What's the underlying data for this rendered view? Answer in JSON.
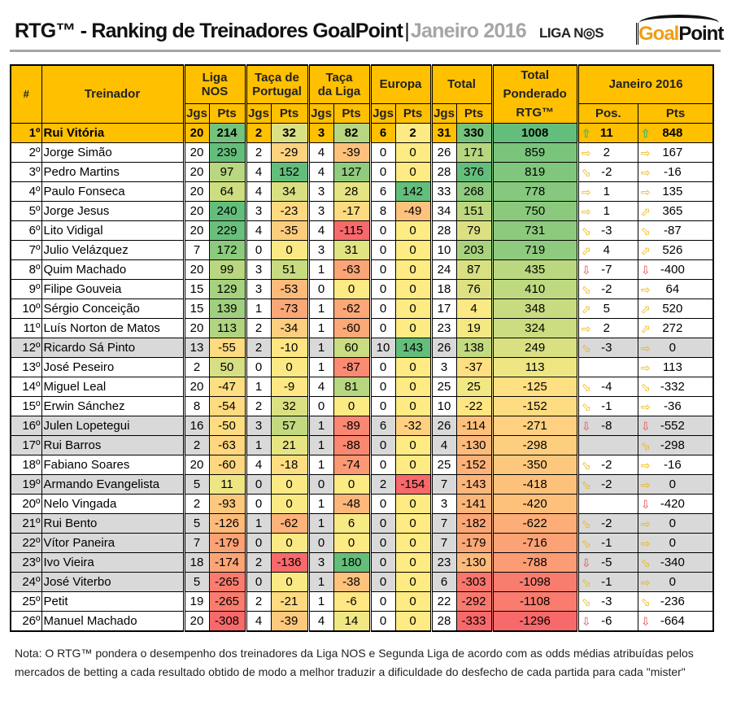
{
  "header": {
    "title": "RTG™ - Ranking de Treinadores GoalPoint",
    "separator": "|",
    "month": "Janeiro 2016",
    "logo_liga": "LIGA NOS",
    "logo_goal": "Goal",
    "logo_point": "Point"
  },
  "columns": {
    "rank": "#",
    "coach": "Treinador",
    "liga": "Liga NOS",
    "taca_portugal": "Taça de Portugal",
    "taca_liga": "Taça da Liga",
    "europa": "Europa",
    "total": "Total",
    "rtg": "Total Ponderado RTG™",
    "month": "Janeiro 2016",
    "jgs": "Jgs",
    "pts": "Pts",
    "pos": "Pos."
  },
  "colors": {
    "header": "#ffc000",
    "top_row": "#ffc000",
    "grey_row": "#d9d9d9",
    "scale_low": "#f8696b",
    "scale_mid": "#ffeb84",
    "scale_high": "#63be7b"
  },
  "rows": [
    {
      "rank": "1º",
      "name": "Rui Vitória",
      "liga": [
        20,
        214
      ],
      "tp": [
        2,
        32
      ],
      "tl": [
        3,
        82
      ],
      "eu": [
        6,
        2
      ],
      "tot": [
        31,
        330
      ],
      "rtg": 1008,
      "pos": 11,
      "pos_icon": "arrow-up",
      "pts": 848,
      "pts_icon": "arrow-up",
      "grey": false
    },
    {
      "rank": "2º",
      "name": "Jorge Simão",
      "liga": [
        20,
        239
      ],
      "tp": [
        2,
        -29
      ],
      "tl": [
        4,
        -39
      ],
      "eu": [
        0,
        0
      ],
      "tot": [
        26,
        171
      ],
      "rtg": 859,
      "pos": 2,
      "pos_icon": "arrow-right",
      "pts": 167,
      "pts_icon": "arrow-right",
      "grey": false
    },
    {
      "rank": "3º",
      "name": "Pedro Martins",
      "liga": [
        20,
        97
      ],
      "tp": [
        4,
        152
      ],
      "tl": [
        4,
        127
      ],
      "eu": [
        0,
        0
      ],
      "tot": [
        28,
        376
      ],
      "rtg": 819,
      "pos": -2,
      "pos_icon": "arrow-down-right",
      "pts": -16,
      "pts_icon": "arrow-right",
      "grey": false
    },
    {
      "rank": "4º",
      "name": "Paulo Fonseca",
      "liga": [
        20,
        64
      ],
      "tp": [
        4,
        34
      ],
      "tl": [
        3,
        28
      ],
      "eu": [
        6,
        142
      ],
      "tot": [
        33,
        268
      ],
      "rtg": 778,
      "pos": 1,
      "pos_icon": "arrow-right",
      "pts": 135,
      "pts_icon": "arrow-right",
      "grey": false
    },
    {
      "rank": "5º",
      "name": "Jorge Jesus",
      "liga": [
        20,
        240
      ],
      "tp": [
        3,
        -23
      ],
      "tl": [
        3,
        -17
      ],
      "eu": [
        8,
        -49
      ],
      "tot": [
        34,
        151
      ],
      "rtg": 750,
      "pos": 1,
      "pos_icon": "arrow-right",
      "pts": 365,
      "pts_icon": "arrow-up-right",
      "grey": false
    },
    {
      "rank": "6º",
      "name": "Lito Vidigal",
      "liga": [
        20,
        229
      ],
      "tp": [
        4,
        -35
      ],
      "tl": [
        4,
        -115
      ],
      "eu": [
        0,
        0
      ],
      "tot": [
        28,
        79
      ],
      "rtg": 731,
      "pos": -3,
      "pos_icon": "arrow-down-right",
      "pts": -87,
      "pts_icon": "arrow-down-right",
      "grey": false
    },
    {
      "rank": "7º",
      "name": "Julio Velázquez",
      "liga": [
        7,
        172
      ],
      "tp": [
        0,
        0
      ],
      "tl": [
        3,
        31
      ],
      "eu": [
        0,
        0
      ],
      "tot": [
        10,
        203
      ],
      "rtg": 719,
      "pos": 4,
      "pos_icon": "arrow-up-right",
      "pts": 526,
      "pts_icon": "arrow-up-right",
      "grey": false
    },
    {
      "rank": "8º",
      "name": "Quim Machado",
      "liga": [
        20,
        99
      ],
      "tp": [
        3,
        51
      ],
      "tl": [
        1,
        -63
      ],
      "eu": [
        0,
        0
      ],
      "tot": [
        24,
        87
      ],
      "rtg": 435,
      "pos": -7,
      "pos_icon": "arrow-down",
      "pts": -400,
      "pts_icon": "arrow-down",
      "grey": false
    },
    {
      "rank": "9º",
      "name": "Filipe Gouveia",
      "liga": [
        15,
        129
      ],
      "tp": [
        3,
        -53
      ],
      "tl": [
        0,
        0
      ],
      "eu": [
        0,
        0
      ],
      "tot": [
        18,
        76
      ],
      "rtg": 410,
      "pos": -2,
      "pos_icon": "arrow-down-right",
      "pts": 64,
      "pts_icon": "arrow-right",
      "grey": false
    },
    {
      "rank": "10º",
      "name": "Sérgio Conceição",
      "liga": [
        15,
        139
      ],
      "tp": [
        1,
        -73
      ],
      "tl": [
        1,
        -62
      ],
      "eu": [
        0,
        0
      ],
      "tot": [
        17,
        4
      ],
      "rtg": 348,
      "pos": 5,
      "pos_icon": "arrow-up-right",
      "pts": 520,
      "pts_icon": "arrow-up-right",
      "grey": false
    },
    {
      "rank": "11º",
      "name": "Luís Norton de Matos",
      "liga": [
        20,
        113
      ],
      "tp": [
        2,
        -34
      ],
      "tl": [
        1,
        -60
      ],
      "eu": [
        0,
        0
      ],
      "tot": [
        23,
        19
      ],
      "rtg": 324,
      "pos": 2,
      "pos_icon": "arrow-right",
      "pts": 272,
      "pts_icon": "arrow-up-right",
      "grey": false
    },
    {
      "rank": "12º",
      "name": "Ricardo Sá Pinto",
      "liga": [
        13,
        -55
      ],
      "tp": [
        2,
        -10
      ],
      "tl": [
        1,
        60
      ],
      "eu": [
        10,
        143
      ],
      "tot": [
        26,
        138
      ],
      "rtg": 249,
      "pos": -3,
      "pos_icon": "arrow-down-right",
      "pts": 0,
      "pts_icon": "arrow-right",
      "grey": true
    },
    {
      "rank": "13º",
      "name": "José Peseiro",
      "liga": [
        2,
        50
      ],
      "tp": [
        0,
        0
      ],
      "tl": [
        1,
        -87
      ],
      "eu": [
        0,
        0
      ],
      "tot": [
        3,
        -37
      ],
      "rtg": 113,
      "pos": null,
      "pos_icon": "",
      "pts": 113,
      "pts_icon": "arrow-right",
      "grey": false
    },
    {
      "rank": "14º",
      "name": "Miguel Leal",
      "liga": [
        20,
        -47
      ],
      "tp": [
        1,
        -9
      ],
      "tl": [
        4,
        81
      ],
      "eu": [
        0,
        0
      ],
      "tot": [
        25,
        25
      ],
      "rtg": -125,
      "pos": -4,
      "pos_icon": "arrow-down-right",
      "pts": -332,
      "pts_icon": "arrow-down-right",
      "grey": false
    },
    {
      "rank": "15º",
      "name": "Erwin Sánchez",
      "liga": [
        8,
        -54
      ],
      "tp": [
        2,
        32
      ],
      "tl": [
        0,
        0
      ],
      "eu": [
        0,
        0
      ],
      "tot": [
        10,
        -22
      ],
      "rtg": -152,
      "pos": -1,
      "pos_icon": "arrow-down-right",
      "pts": -36,
      "pts_icon": "arrow-right",
      "grey": false
    },
    {
      "rank": "16º",
      "name": "Julen Lopetegui",
      "liga": [
        16,
        -50
      ],
      "tp": [
        3,
        57
      ],
      "tl": [
        1,
        -89
      ],
      "eu": [
        6,
        -32
      ],
      "tot": [
        26,
        -114
      ],
      "rtg": -271,
      "pos": -8,
      "pos_icon": "arrow-down",
      "pts": -552,
      "pts_icon": "arrow-down",
      "grey": true
    },
    {
      "rank": "17º",
      "name": "Rui Barros",
      "liga": [
        2,
        -63
      ],
      "tp": [
        1,
        21
      ],
      "tl": [
        1,
        -88
      ],
      "eu": [
        0,
        0
      ],
      "tot": [
        4,
        -130
      ],
      "rtg": -298,
      "pos": null,
      "pos_icon": "",
      "pts": -298,
      "pts_icon": "arrow-down-right",
      "grey": true
    },
    {
      "rank": "18º",
      "name": "Fabiano Soares",
      "liga": [
        20,
        -60
      ],
      "tp": [
        4,
        -18
      ],
      "tl": [
        1,
        -74
      ],
      "eu": [
        0,
        0
      ],
      "tot": [
        25,
        -152
      ],
      "rtg": -350,
      "pos": -2,
      "pos_icon": "arrow-down-right",
      "pts": -16,
      "pts_icon": "arrow-right",
      "grey": false
    },
    {
      "rank": "19º",
      "name": "Armando Evangelista",
      "liga": [
        5,
        11
      ],
      "tp": [
        0,
        0
      ],
      "tl": [
        0,
        0
      ],
      "eu": [
        2,
        -154
      ],
      "tot": [
        7,
        -143
      ],
      "rtg": -418,
      "pos": -2,
      "pos_icon": "arrow-down-right",
      "pts": 0,
      "pts_icon": "arrow-right",
      "grey": true
    },
    {
      "rank": "20º",
      "name": "Nelo Vingada",
      "liga": [
        2,
        -93
      ],
      "tp": [
        0,
        0
      ],
      "tl": [
        1,
        -48
      ],
      "eu": [
        0,
        0
      ],
      "tot": [
        3,
        -141
      ],
      "rtg": -420,
      "pos": null,
      "pos_icon": "",
      "pts": -420,
      "pts_icon": "arrow-down",
      "grey": false
    },
    {
      "rank": "21º",
      "name": "Rui Bento",
      "liga": [
        5,
        -126
      ],
      "tp": [
        1,
        -62
      ],
      "tl": [
        1,
        6
      ],
      "eu": [
        0,
        0
      ],
      "tot": [
        7,
        -182
      ],
      "rtg": -622,
      "pos": -2,
      "pos_icon": "arrow-down-right",
      "pts": 0,
      "pts_icon": "arrow-right",
      "grey": true
    },
    {
      "rank": "22º",
      "name": "Vítor Paneira",
      "liga": [
        7,
        -179
      ],
      "tp": [
        0,
        0
      ],
      "tl": [
        0,
        0
      ],
      "eu": [
        0,
        0
      ],
      "tot": [
        7,
        -179
      ],
      "rtg": -716,
      "pos": -1,
      "pos_icon": "arrow-down-right",
      "pts": 0,
      "pts_icon": "arrow-right",
      "grey": true
    },
    {
      "rank": "23º",
      "name": "Ivo Vieira",
      "liga": [
        18,
        -174
      ],
      "tp": [
        2,
        -136
      ],
      "tl": [
        3,
        180
      ],
      "eu": [
        0,
        0
      ],
      "tot": [
        23,
        -130
      ],
      "rtg": -788,
      "pos": -5,
      "pos_icon": "arrow-down",
      "pts": -340,
      "pts_icon": "arrow-down-right",
      "grey": true
    },
    {
      "rank": "24º",
      "name": "José Viterbo",
      "liga": [
        5,
        -265
      ],
      "tp": [
        0,
        0
      ],
      "tl": [
        1,
        -38
      ],
      "eu": [
        0,
        0
      ],
      "tot": [
        6,
        -303
      ],
      "rtg": -1098,
      "pos": -1,
      "pos_icon": "arrow-down-right",
      "pts": 0,
      "pts_icon": "arrow-right",
      "grey": true
    },
    {
      "rank": "25º",
      "name": "Petit",
      "liga": [
        19,
        -265
      ],
      "tp": [
        2,
        -21
      ],
      "tl": [
        1,
        -6
      ],
      "eu": [
        0,
        0
      ],
      "tot": [
        22,
        -292
      ],
      "rtg": -1108,
      "pos": -3,
      "pos_icon": "arrow-down-right",
      "pts": -236,
      "pts_icon": "arrow-down-right",
      "grey": false
    },
    {
      "rank": "26º",
      "name": "Manuel Machado",
      "liga": [
        20,
        -308
      ],
      "tp": [
        4,
        -39
      ],
      "tl": [
        4,
        14
      ],
      "eu": [
        0,
        0
      ],
      "tot": [
        28,
        -333
      ],
      "rtg": -1296,
      "pos": -6,
      "pos_icon": "arrow-down",
      "pts": -664,
      "pts_icon": "arrow-down",
      "grey": false
    }
  ],
  "note": "Nota: O RTG™ pondera o desempenho dos treinadores da Liga NOS e Segunda Liga de acordo com as odds médias atribuídas pelos mercados de betting a cada resultado obtido de modo a melhor traduzir a dificuldade do desfecho de cada partida para cada \"mister\""
}
